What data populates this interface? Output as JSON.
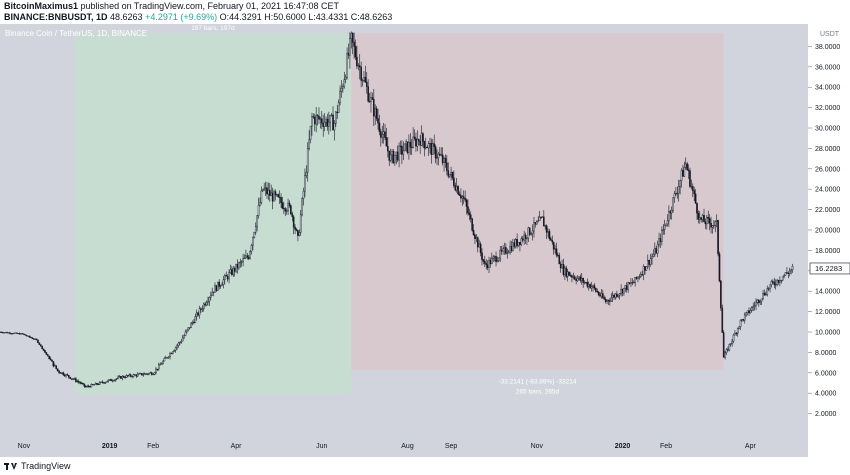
{
  "header": {
    "author": "BitcoinMaximus1",
    "published": "published on TradingView.com, February 01, 2021 16:47:08 CET",
    "symbol_line": "BINANCE:BNBUSDT, 1D",
    "last": "48.6263",
    "change": "+4.2971 (+9.69%)",
    "ohlc": "O:44.3291 H:50.6000 L:43.4331 C:48.6263"
  },
  "chart_data": {
    "type": "candlestick",
    "title": "Binance Coin / TetherUS, 1D, BINANCE",
    "currency": "USDT",
    "ylim": [
      0,
      40
    ],
    "y_ticks": [
      "2.0000",
      "4.0000",
      "6.0000",
      "8.0000",
      "10.0000",
      "12.0000",
      "14.0000",
      "16.0000",
      "18.0000",
      "20.0000",
      "22.0000",
      "24.0000",
      "26.0000",
      "28.0000",
      "30.0000",
      "32.0000",
      "34.0000",
      "36.0000",
      "38.0000"
    ],
    "x_ticks": [
      "Nov",
      "2019",
      "Feb",
      "Apr",
      "Jun",
      "Aug",
      "Sep",
      "Nov",
      "2020",
      "Feb",
      "Apr"
    ],
    "last_price": "16.2283",
    "price_path": [
      [
        "2018-10-15",
        10.0
      ],
      [
        "2018-10-31",
        9.8
      ],
      [
        "2018-11-10",
        9.2
      ],
      [
        "2018-11-25",
        6.2
      ],
      [
        "2018-12-10",
        5.1
      ],
      [
        "2018-12-15",
        4.6
      ],
      [
        "2019-01-10",
        5.6
      ],
      [
        "2019-02-01",
        6.0
      ],
      [
        "2019-02-20",
        9.0
      ],
      [
        "2019-03-15",
        14.0
      ],
      [
        "2019-04-10",
        17.5
      ],
      [
        "2019-04-20",
        24.0
      ],
      [
        "2019-05-10",
        22.0
      ],
      [
        "2019-05-15",
        19.0
      ],
      [
        "2019-05-25",
        31.0
      ],
      [
        "2019-06-10",
        30.5
      ],
      [
        "2019-06-22",
        38.5
      ],
      [
        "2019-07-05",
        33.0
      ],
      [
        "2019-07-20",
        27.0
      ],
      [
        "2019-08-10",
        29.0
      ],
      [
        "2019-08-25",
        27.0
      ],
      [
        "2019-09-10",
        23.0
      ],
      [
        "2019-09-25",
        16.5
      ],
      [
        "2019-10-20",
        19.0
      ],
      [
        "2019-11-05",
        21.0
      ],
      [
        "2019-11-20",
        16.0
      ],
      [
        "2019-12-10",
        14.5
      ],
      [
        "2019-12-20",
        13.0
      ],
      [
        "2020-01-10",
        15.0
      ],
      [
        "2020-01-25",
        18.0
      ],
      [
        "2020-02-15",
        26.5
      ],
      [
        "2020-02-25",
        21.0
      ],
      [
        "2020-03-08",
        20.5
      ],
      [
        "2020-03-12",
        10.0
      ],
      [
        "2020-03-13",
        7.5
      ],
      [
        "2020-03-25",
        11.0
      ],
      [
        "2020-04-15",
        14.5
      ],
      [
        "2020-05-01",
        16.2
      ]
    ],
    "measure_rise": {
      "label": "35.4741 (861.02%) 35474",
      "sublabel": "197 bars, 197d",
      "from": "2018-12-07",
      "to": "2019-06-22",
      "low": 3.9,
      "high": 39.3,
      "color": "#c8ddd2"
    },
    "measure_fall": {
      "label": "-33.2141 (-83.89%) -33214",
      "sublabel": "265 bars, 265d",
      "from": "2019-06-22",
      "to": "2020-03-13",
      "low": 6.3,
      "high": 39.3,
      "color": "#d8c9cf"
    },
    "colors": {
      "background": "#d1d4dc",
      "candles": "#131722",
      "last_price_box": "#ffffff"
    }
  },
  "footer": {
    "brand": "TradingView"
  }
}
